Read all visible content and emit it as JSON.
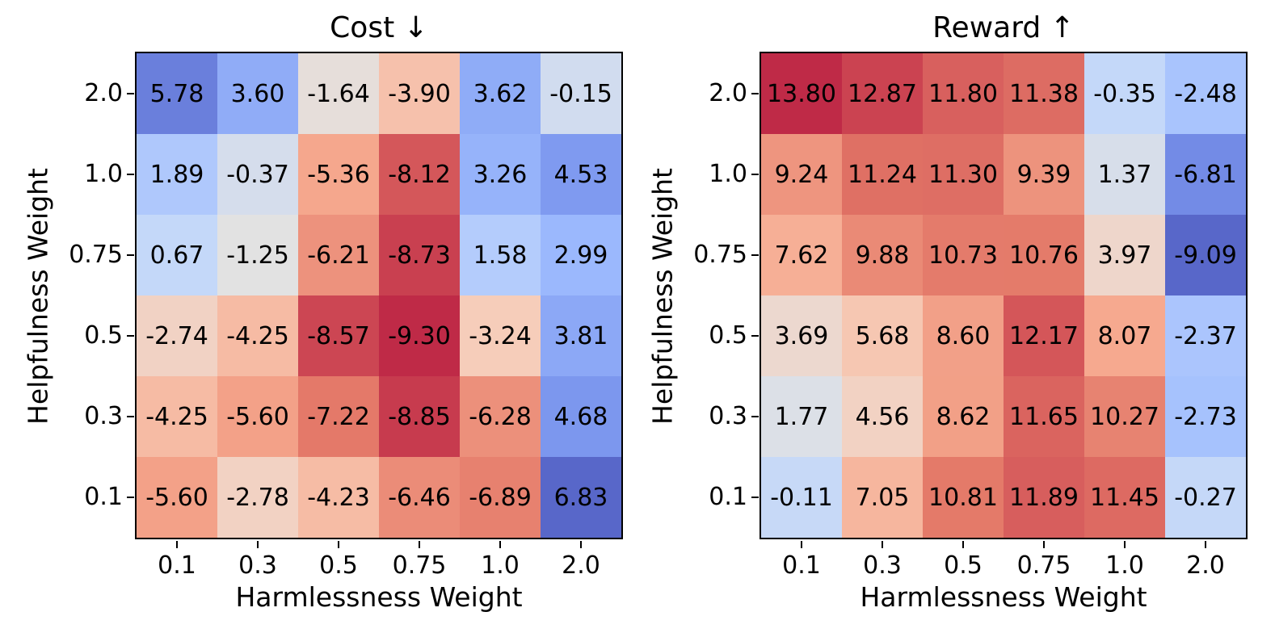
{
  "style": {
    "background": "#ffffff",
    "cell_text_color": "#000000",
    "axis_color": "#000000",
    "colormap_low": "#3b4cc0",
    "colormap_mid": "#dddddd",
    "colormap_high": "#b40426",
    "cell_alpha": 0.85
  },
  "chart_data": [
    {
      "type": "heatmap",
      "title": "Cost ↓",
      "xlabel": "Harmlessness Weight",
      "ylabel": "Helpfulness Weight",
      "x_ticks": [
        "0.1",
        "0.3",
        "0.5",
        "0.75",
        "1.0",
        "2.0"
      ],
      "y_ticks": [
        "2.0",
        "1.0",
        "0.75",
        "0.5",
        "0.3",
        "0.1"
      ],
      "rows": [
        [
          5.78,
          3.6,
          -1.64,
          -3.9,
          3.62,
          -0.15
        ],
        [
          1.89,
          -0.37,
          -5.36,
          -8.12,
          3.26,
          4.53
        ],
        [
          0.67,
          -1.25,
          -6.21,
          -8.73,
          1.58,
          2.99
        ],
        [
          -2.74,
          -4.25,
          -8.57,
          -9.3,
          -3.24,
          3.81
        ],
        [
          -4.25,
          -5.6,
          -7.22,
          -8.85,
          -6.28,
          4.68
        ],
        [
          -5.6,
          -2.78,
          -4.23,
          -6.46,
          -6.89,
          6.83
        ]
      ],
      "colormap": "coolwarm_r",
      "vmin": -9.3,
      "vmax": 6.83,
      "value_decimals": 2,
      "legend": "none",
      "grid": "off"
    },
    {
      "type": "heatmap",
      "title": "Reward ↑",
      "xlabel": "Harmlessness Weight",
      "ylabel": "Helpfulness Weight",
      "x_ticks": [
        "0.1",
        "0.3",
        "0.5",
        "0.75",
        "1.0",
        "2.0"
      ],
      "y_ticks": [
        "2.0",
        "1.0",
        "0.75",
        "0.5",
        "0.3",
        "0.1"
      ],
      "rows": [
        [
          13.8,
          12.87,
          11.8,
          11.38,
          -0.35,
          -2.48
        ],
        [
          9.24,
          11.24,
          11.3,
          9.39,
          1.37,
          -6.81
        ],
        [
          7.62,
          9.88,
          10.73,
          10.76,
          3.97,
          -9.09
        ],
        [
          3.69,
          5.68,
          8.6,
          12.17,
          8.07,
          -2.37
        ],
        [
          1.77,
          4.56,
          8.62,
          11.65,
          10.27,
          -2.73
        ],
        [
          -0.11,
          7.05,
          10.81,
          11.89,
          11.45,
          -0.27
        ]
      ],
      "colormap": "coolwarm",
      "vmin": -9.09,
      "vmax": 13.8,
      "value_decimals": 2,
      "legend": "none",
      "grid": "off"
    }
  ]
}
